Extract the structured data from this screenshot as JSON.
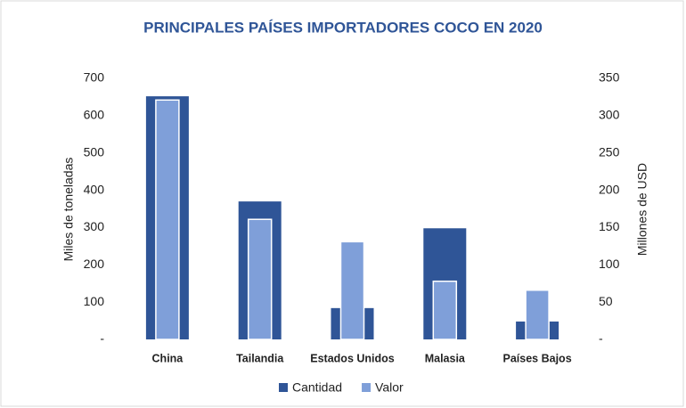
{
  "chart_data": {
    "type": "bar",
    "title": "PRINCIPALES PAÍSES IMPORTADORES COCO EN 2020",
    "ylabel": "Miles de toneladas",
    "y2label": "Millones de USD",
    "categories": [
      "China",
      "Tailandia",
      "Estados Unidos",
      "Malasia",
      "Países Bajos"
    ],
    "series": [
      {
        "name": "Cantidad",
        "color": "#2f5597",
        "values": [
          652,
          370,
          84,
          298,
          48
        ]
      },
      {
        "name": "Valor",
        "color": "#7f9fd9",
        "axis": "y2",
        "values": [
          321,
          161,
          131,
          78,
          66
        ]
      }
    ],
    "ylim": [
      0,
      700
    ],
    "yticks": [
      {
        "value": 0,
        "label": "-"
      },
      100,
      200,
      300,
      400,
      500,
      600,
      700
    ],
    "y2lim": [
      0,
      350
    ],
    "y2ticks": [
      {
        "value": 0,
        "label": "-"
      },
      50,
      100,
      150,
      200,
      250,
      300,
      350
    ],
    "legend": "bottom"
  }
}
